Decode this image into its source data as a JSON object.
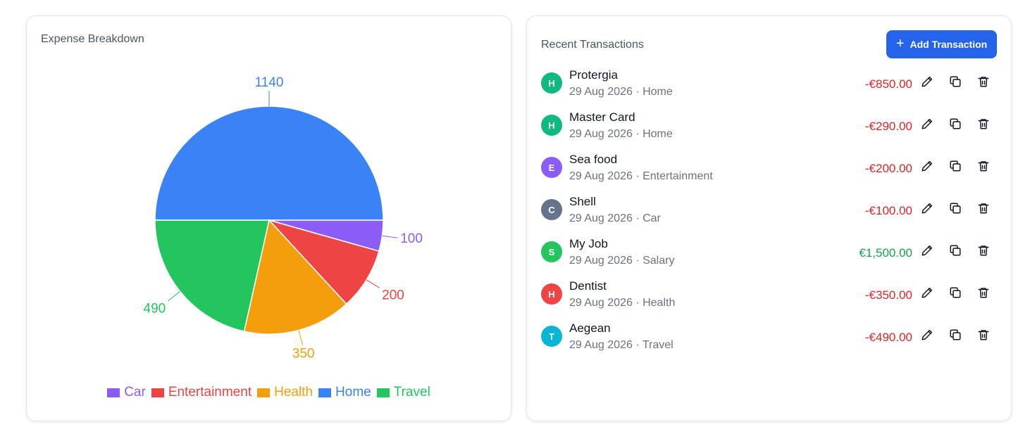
{
  "expense": {
    "title": "Expense Breakdown",
    "legend": [
      {
        "label": "Car",
        "color": "#8b5cf6"
      },
      {
        "label": "Entertainment",
        "color": "#ef4444"
      },
      {
        "label": "Health",
        "color": "#f59e0b"
      },
      {
        "label": "Home",
        "color": "#3b82f6"
      },
      {
        "label": "Travel",
        "color": "#22c55e"
      }
    ]
  },
  "chart_data": {
    "type": "pie",
    "title": "Expense Breakdown",
    "slices": [
      {
        "label": "Home",
        "value": 1140,
        "color": "#3b82f6"
      },
      {
        "label": "Car",
        "value": 100,
        "color": "#8b5cf6"
      },
      {
        "label": "Entertainment",
        "value": 200,
        "color": "#ef4444"
      },
      {
        "label": "Health",
        "value": 350,
        "color": "#f59e0b"
      },
      {
        "label": "Travel",
        "value": 490,
        "color": "#22c55e"
      }
    ],
    "legend_position": "bottom"
  },
  "transactions": {
    "title": "Recent Transactions",
    "add_label": "Add Transaction",
    "items": [
      {
        "initial": "H",
        "avatar_color": "#10b981",
        "name": "Protergia",
        "date": "29 Aug 2026",
        "category": "Home",
        "amount": "-€850.00",
        "positive": false
      },
      {
        "initial": "H",
        "avatar_color": "#10b981",
        "name": "Master Card",
        "date": "29 Aug 2026",
        "category": "Home",
        "amount": "-€290.00",
        "positive": false
      },
      {
        "initial": "E",
        "avatar_color": "#8b5cf6",
        "name": "Sea food",
        "date": "29 Aug 2026",
        "category": "Entertainment",
        "amount": "-€200.00",
        "positive": false
      },
      {
        "initial": "C",
        "avatar_color": "#64748b",
        "name": "Shell",
        "date": "29 Aug 2026",
        "category": "Car",
        "amount": "-€100.00",
        "positive": false
      },
      {
        "initial": "S",
        "avatar_color": "#22c55e",
        "name": "My Job",
        "date": "29 Aug 2026",
        "category": "Salary",
        "amount": "€1,500.00",
        "positive": true
      },
      {
        "initial": "H",
        "avatar_color": "#ef4444",
        "name": "Dentist",
        "date": "29 Aug 2026",
        "category": "Health",
        "amount": "-€350.00",
        "positive": false
      },
      {
        "initial": "T",
        "avatar_color": "#06b6d4",
        "name": "Aegean",
        "date": "29 Aug 2026",
        "category": "Travel",
        "amount": "-€490.00",
        "positive": false
      }
    ]
  },
  "icons": {
    "add": "plus-icon",
    "edit": "pencil-icon",
    "copy": "copy-icon",
    "delete": "trash-icon"
  }
}
